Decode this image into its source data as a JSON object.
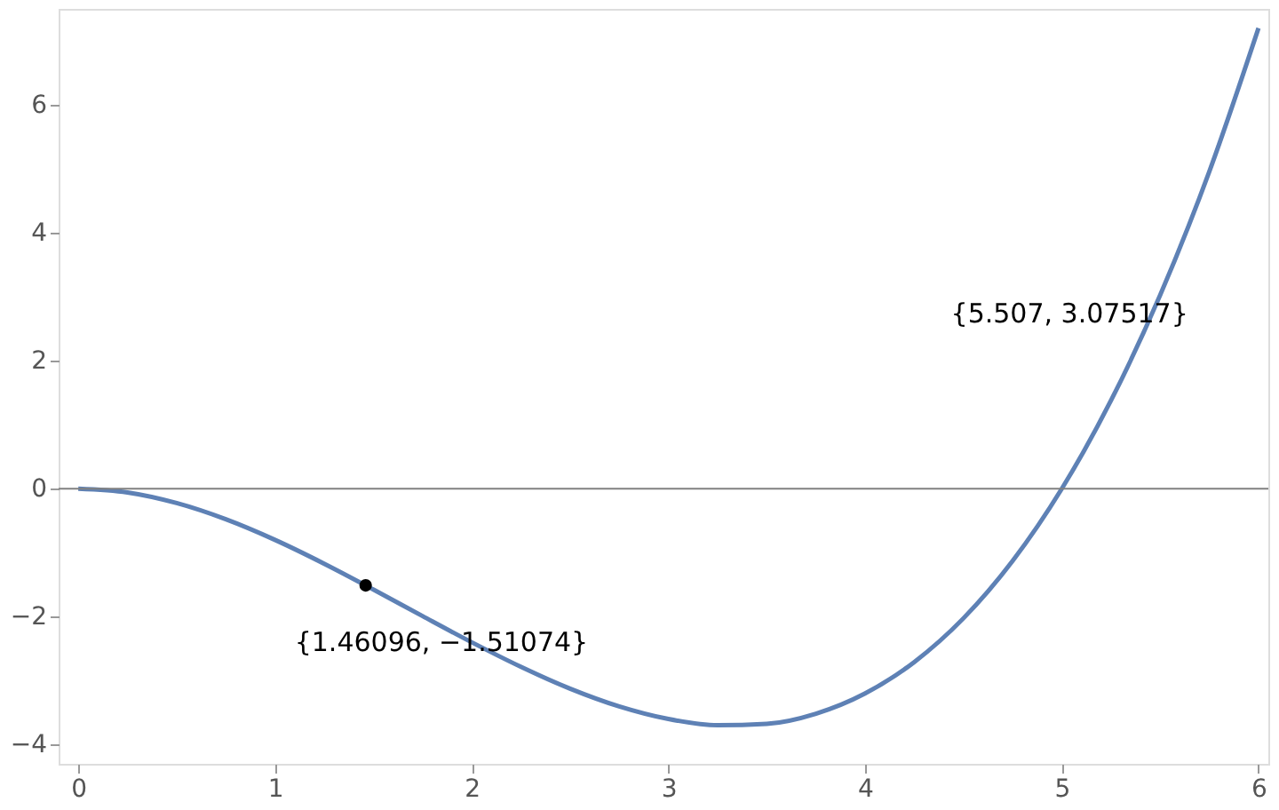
{
  "chart_data": {
    "type": "line",
    "xlim": [
      -0.1,
      6.05
    ],
    "xticks": [
      0,
      1,
      2,
      3,
      4,
      5,
      6
    ],
    "ylim": [
      -4.3,
      7.5
    ],
    "yticks": [
      -4,
      -2,
      0,
      2,
      4,
      6
    ],
    "grid": false,
    "ref_lines": [
      {
        "axis": "y",
        "value": 0,
        "color": "#808080"
      }
    ],
    "series": [
      {
        "color": "#5e81b5",
        "x": [
          0,
          0.25,
          0.5,
          0.75,
          1,
          1.25,
          1.5,
          1.75,
          2,
          2.25,
          2.5,
          2.75,
          3,
          3.25,
          3.5,
          3.75,
          4,
          4.25,
          4.5,
          4.75,
          5,
          5.25,
          5.5,
          5.75,
          6
        ],
        "values": [
          0,
          -0.059,
          -0.225,
          -0.478,
          -0.8,
          -1.172,
          -1.575,
          -1.991,
          -2.4,
          -2.784,
          -3.125,
          -3.403,
          -3.6,
          -3.697,
          -3.675,
          -3.516,
          -3.2,
          -2.709,
          -2.025,
          -1.128,
          0,
          1.378,
          3.025,
          4.959,
          7.2
        ]
      },
      {
        "type": "scatter",
        "color": "#000000",
        "marker": "circle",
        "x": [
          1.46096
        ],
        "values": [
          -1.51074
        ]
      }
    ],
    "annotations": [
      {
        "text": "{1.46096, −1.51074}",
        "x": 1.46096,
        "y": -1.51074
      },
      {
        "text": "{5.507, 3.07517}",
        "x": 5.507,
        "y": 3.07517
      }
    ]
  }
}
